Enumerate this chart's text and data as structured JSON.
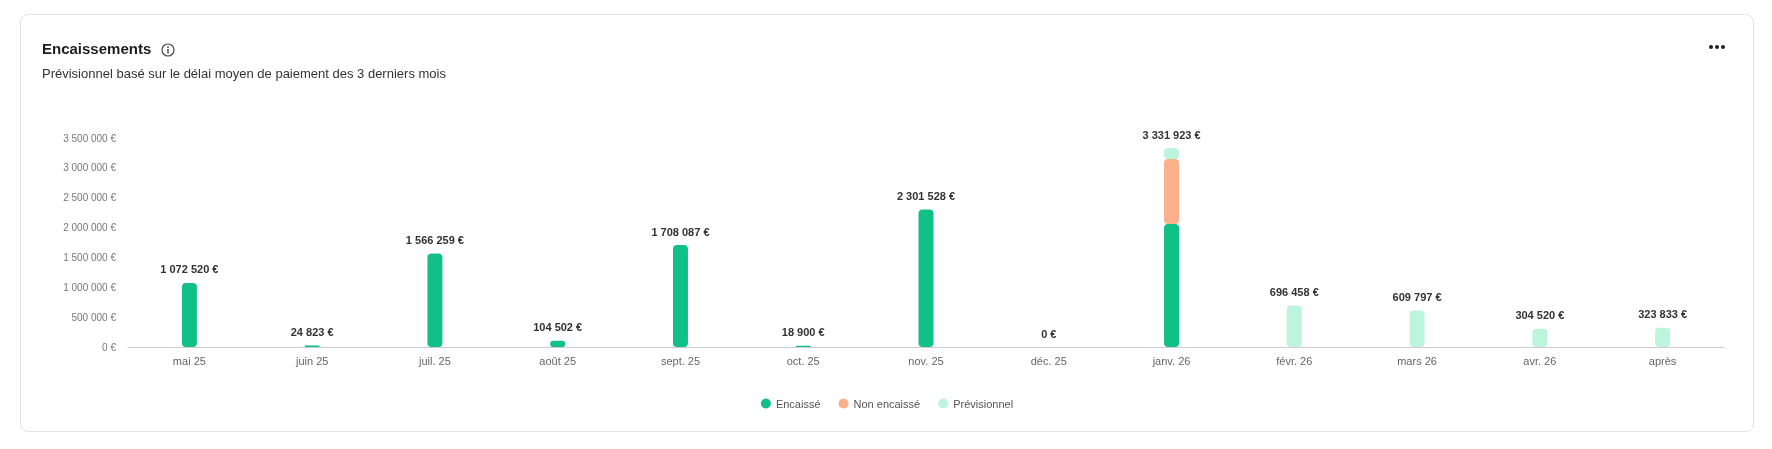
{
  "chart_data": {
    "type": "bar",
    "title": "Encaissements",
    "subtitle": "Prévisionnel basé sur le délai moyen de paiement des 3 derniers mois",
    "categories": [
      "mai 25",
      "juin 25",
      "juil. 25",
      "août 25",
      "sept. 25",
      "oct. 25",
      "nov. 25",
      "déc. 25",
      "janv. 26",
      "févr. 26",
      "mars 26",
      "avr. 26",
      "après"
    ],
    "stacked": true,
    "series": [
      {
        "name": "Encaissé",
        "color": "#10c086",
        "values": [
          1072520,
          24823,
          1566259,
          104502,
          1708087,
          18900,
          2301528,
          0,
          2060000,
          null,
          null,
          null,
          null
        ]
      },
      {
        "name": "Non encaissé",
        "color": "#fbb08a",
        "values": [
          null,
          null,
          null,
          null,
          null,
          null,
          null,
          null,
          1090000,
          null,
          null,
          null,
          null
        ]
      },
      {
        "name": "Prévisionnel",
        "color": "#bdf5dc",
        "values": [
          null,
          null,
          null,
          null,
          null,
          null,
          null,
          null,
          181923,
          696458,
          609797,
          304520,
          323833
        ]
      }
    ],
    "totals": [
      "1 072 520 €",
      "24 823 €",
      "1 566 259 €",
      "104 502 €",
      "1 708 087 €",
      "18 900 €",
      "2 301 528 €",
      "0 €",
      "3 331 923 €",
      "696 458 €",
      "609 797 €",
      "304 520 €",
      "323 833 €"
    ],
    "ylim": [
      0,
      3500000
    ],
    "yticks": [
      {
        "value": 0,
        "label": "0 €"
      },
      {
        "value": 500000,
        "label": "500 000 €"
      },
      {
        "value": 1000000,
        "label": "1 000 000 €"
      },
      {
        "value": 1500000,
        "label": "1 500 000 €"
      },
      {
        "value": 2000000,
        "label": "2 000 000 €"
      },
      {
        "value": 2500000,
        "label": "2 500 000 €"
      },
      {
        "value": 3000000,
        "label": "3 000 000 €"
      },
      {
        "value": 3500000,
        "label": "3 500 000 €"
      }
    ],
    "grid": false,
    "legend": "bottom"
  }
}
